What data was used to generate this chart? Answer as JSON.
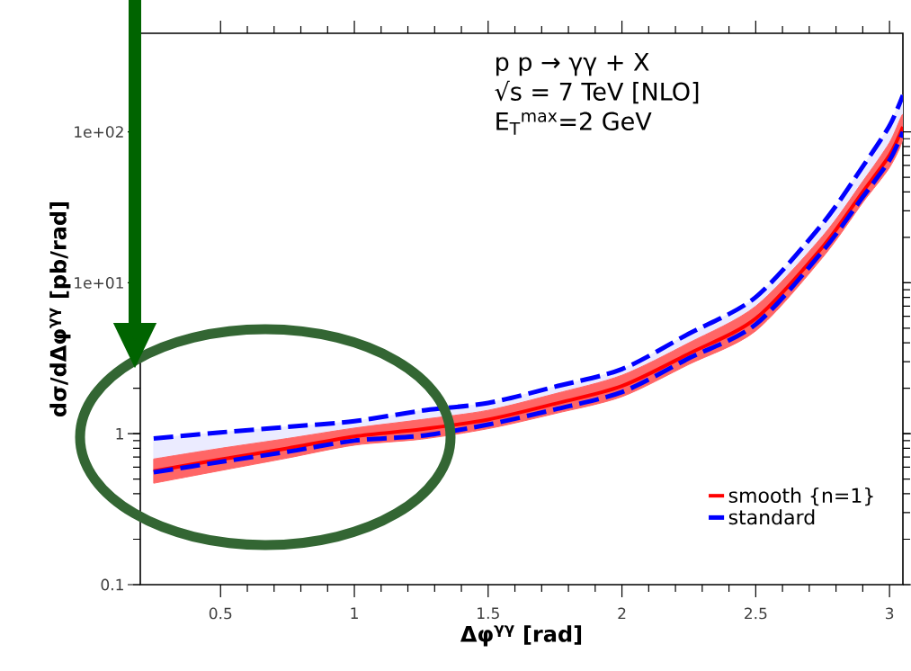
{
  "chart_data": {
    "type": "line",
    "xlabel": "Δφ$^{γγ}$ [rad]",
    "ylabel": "dσ/dΔφ$^{γγ}$ [pb/rad]",
    "annotations": [
      "p p → γγ + X",
      "√s = 7 TeV [NLO]",
      "E$_{T}$$^{max}$=2 GeV"
    ],
    "x": [
      0.25,
      0.5,
      0.75,
      1.0,
      1.25,
      1.5,
      1.75,
      2,
      2.25,
      2.5,
      2.75,
      2.9,
      3.0,
      3.05
    ],
    "series": [
      {
        "name": "smooth {n=1}",
        "color": "#ff0000",
        "line_style": "solid",
        "values": [
          0.565,
          0.675,
          0.8,
          0.96,
          1.07,
          1.24,
          1.58,
          2.07,
          3.39,
          5.8,
          17.3,
          40,
          70,
          108
        ],
        "lower": [
          0.47,
          0.57,
          0.69,
          0.84,
          0.92,
          1.08,
          1.36,
          1.76,
          2.88,
          4.8,
          14.7,
          34,
          58,
          90
        ],
        "upper": [
          0.68,
          0.8,
          0.93,
          1.09,
          1.24,
          1.43,
          1.84,
          2.44,
          4.0,
          7.0,
          20.4,
          47,
          85,
          131
        ]
      },
      {
        "name": "standard",
        "color": "#0000ff",
        "line_style": "dashed",
        "values": [
          0.555,
          0.65,
          0.76,
          0.9,
          0.97,
          1.15,
          1.45,
          1.89,
          3.16,
          5.3,
          16.2,
          37,
          65,
          100
        ],
        "lower": [
          0.555,
          0.65,
          0.76,
          0.9,
          0.97,
          1.15,
          1.45,
          1.89,
          3.16,
          5.3,
          16.2,
          37,
          65,
          100
        ],
        "upper": [
          0.93,
          1.02,
          1.11,
          1.21,
          1.42,
          1.6,
          2.05,
          2.68,
          4.6,
          8.03,
          24.7,
          59,
          110,
          175
        ]
      },
      {
        "color": "#0000ff",
        "line_style": "dashed",
        "values": [
          0.93,
          1.02,
          1.11,
          1.21,
          1.42,
          1.6,
          2.05,
          2.68,
          4.6,
          8.03,
          24.7,
          59,
          110,
          175
        ]
      }
    ],
    "xlim": [
      0.2,
      3.05
    ],
    "ylim": [
      0.1,
      450
    ],
    "xticks": [
      0.5,
      1,
      1.5,
      2,
      2.5,
      3
    ],
    "yticks": [
      {
        "value": 0.1,
        "label": "0.1"
      },
      {
        "value": 1,
        "label": "1"
      },
      {
        "value": 10,
        "label": "1e+01"
      },
      {
        "value": 100,
        "label": "1e+02"
      }
    ],
    "log": "y",
    "legend": "bottom right",
    "grid": false
  }
}
